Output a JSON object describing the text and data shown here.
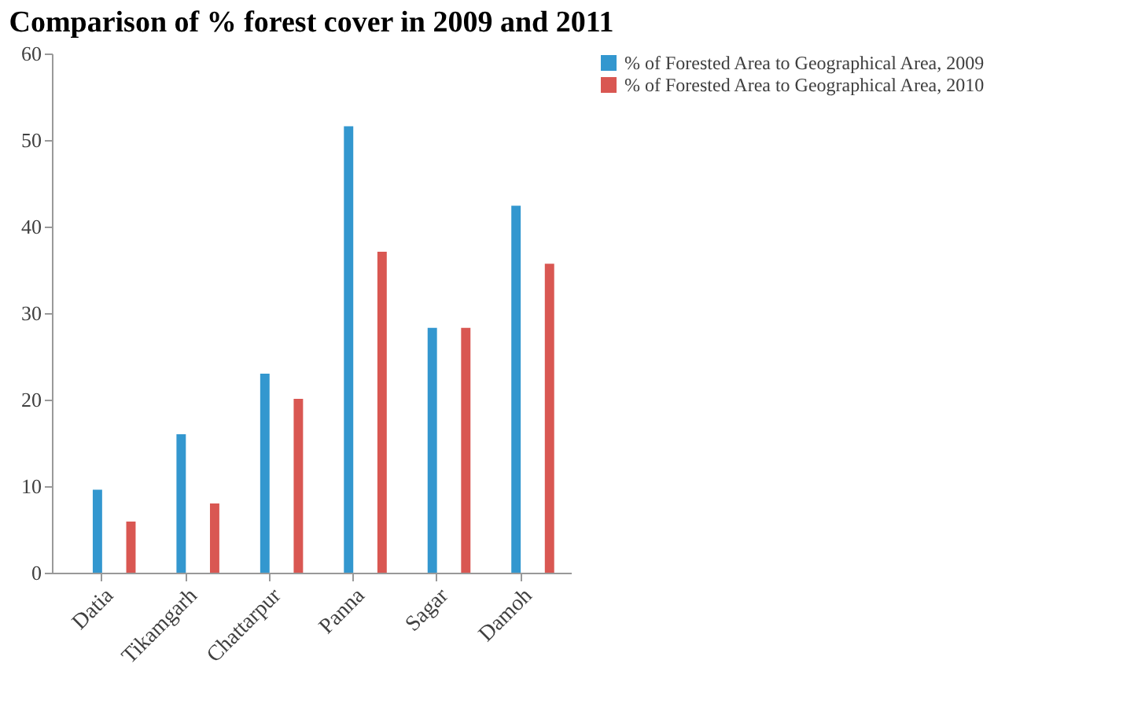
{
  "chart_data": {
    "type": "bar",
    "title": "Comparison of % forest cover in 2009 and 2011",
    "categories": [
      "Datia",
      "Tikamgarh",
      "Chattarpur",
      "Panna",
      "Sagar",
      "Damoh"
    ],
    "series": [
      {
        "name": "% of Forested Area to Geographical Area, 2009",
        "color": "#3397cf",
        "values": [
          9.6,
          16.0,
          23.0,
          51.6,
          28.3,
          42.4
        ]
      },
      {
        "name": "% of Forested Area to Geographical Area, 2010",
        "color": "#d95752",
        "values": [
          5.9,
          8.0,
          20.1,
          37.1,
          28.3,
          35.7
        ]
      }
    ],
    "ylim": [
      0,
      60
    ],
    "yticks": [
      0,
      10,
      20,
      30,
      40,
      50,
      60
    ],
    "grid": false,
    "legend": "right"
  }
}
